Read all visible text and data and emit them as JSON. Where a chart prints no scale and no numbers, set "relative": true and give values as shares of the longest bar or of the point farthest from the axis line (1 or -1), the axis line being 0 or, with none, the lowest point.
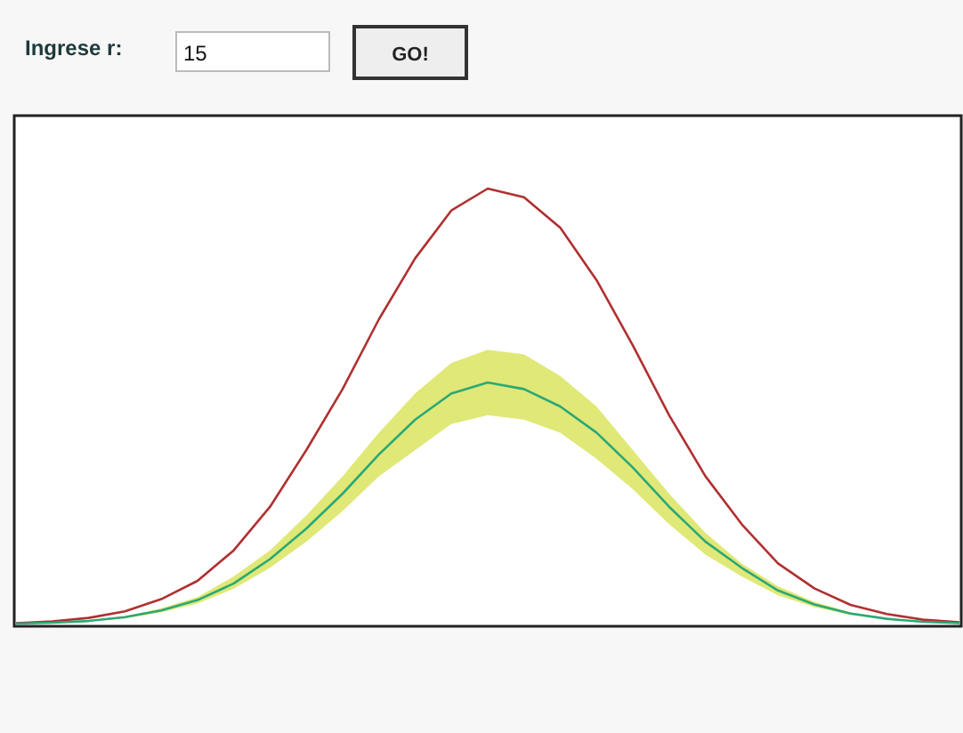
{
  "chart_data": {
    "type": "line",
    "relative": true,
    "categories": [
      null,
      null,
      null,
      null,
      null,
      null,
      null,
      null,
      null,
      null,
      null,
      null,
      null,
      null,
      null,
      null,
      null,
      null,
      null,
      null,
      null,
      null,
      null,
      null,
      null,
      null,
      null
    ],
    "series": [
      {
        "color": "#b03030",
        "values": [
          0.003,
          0.007,
          0.015,
          0.03,
          0.058,
          0.1,
          0.17,
          0.27,
          0.4,
          0.54,
          0.7,
          0.84,
          0.95,
          1,
          0.98,
          0.91,
          0.79,
          0.64,
          0.48,
          0.34,
          0.23,
          0.14,
          0.083,
          0.045,
          0.024,
          0.011,
          0.005
        ]
      },
      {
        "color": "#2aa876",
        "values": [
          0.002,
          0.004,
          0.008,
          0.017,
          0.032,
          0.056,
          0.094,
          0.15,
          0.22,
          0.3,
          0.39,
          0.47,
          0.53,
          0.555,
          0.54,
          0.5,
          0.44,
          0.36,
          0.27,
          0.19,
          0.13,
          0.078,
          0.046,
          0.025,
          0.013,
          0.006,
          0.003
        ],
        "lower": [
          0.001,
          0.003,
          0.007,
          0.014,
          0.028,
          0.048,
          0.082,
          0.13,
          0.19,
          0.26,
          0.34,
          0.4,
          0.46,
          0.48,
          0.47,
          0.44,
          0.38,
          0.31,
          0.23,
          0.16,
          0.11,
          0.067,
          0.04,
          0.022,
          0.012,
          0.005,
          0.002
        ],
        "upper": [
          0.002,
          0.004,
          0.009,
          0.019,
          0.037,
          0.063,
          0.11,
          0.17,
          0.25,
          0.34,
          0.44,
          0.53,
          0.6,
          0.63,
          0.62,
          0.57,
          0.5,
          0.4,
          0.3,
          0.21,
          0.14,
          0.088,
          0.052,
          0.028,
          0.015,
          0.007,
          0.003
        ]
      }
    ],
    "annotations": [
      "Ingrese r:",
      "15",
      "GO!"
    ]
  }
}
